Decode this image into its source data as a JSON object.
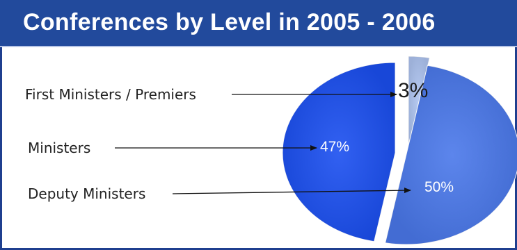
{
  "header": {
    "title": "Conferences by Level in 2005 - 2006"
  },
  "colors": {
    "header_bg": "#224a9c",
    "first_ministers": "#aec4f0",
    "ministers": "#1b4ff0",
    "deputy_ministers": "#4a78ea"
  },
  "chart_data": {
    "type": "pie",
    "title": "Conferences by Level in 2005 - 2006",
    "slices": [
      {
        "label": "First Ministers / Premiers",
        "value": 3,
        "value_label": "3%",
        "color": "#aec4f0"
      },
      {
        "label": "Ministers",
        "value": 47,
        "value_label": "47%",
        "color": "#1b4ff0"
      },
      {
        "label": "Deputy Ministers",
        "value": 50,
        "value_label": "50%",
        "color": "#4a78ea"
      }
    ],
    "legend": "left, with arrows pointing to slices"
  }
}
